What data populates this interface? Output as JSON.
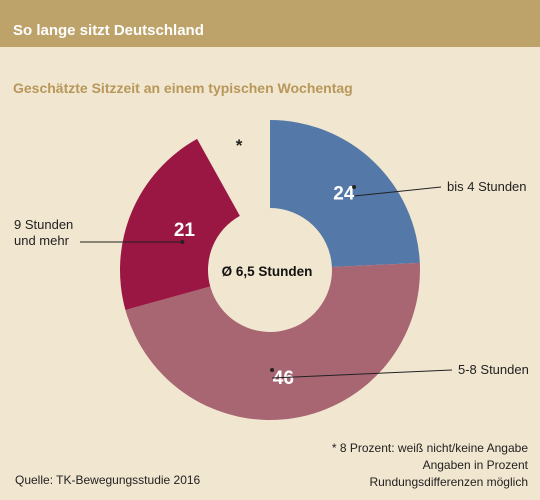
{
  "header": {
    "title": "So lange sitzt Deutschland"
  },
  "chart_data": {
    "type": "pie",
    "variant": "donut",
    "subtitle": "Geschätzte Sitzzeit an einem typischen Wochentag",
    "center_label": "Ø 6,5 Stunden",
    "unit": "Prozent",
    "slices": [
      {
        "label": "bis 4 Stunden",
        "value": 24,
        "color": "#5479a8"
      },
      {
        "label": "5-8 Stunden",
        "value": 46,
        "color": "#a86572"
      },
      {
        "label": "9 Stunden und mehr",
        "label_lines": [
          "9 Stunden",
          "und mehr"
        ],
        "value": 21,
        "color": "#9a1744"
      }
    ],
    "missing": {
      "value": 8,
      "marker": "*",
      "note": "* 8 Prozent: weiß nicht/keine Angabe"
    },
    "start_angle_deg": 0,
    "direction": "clockwise"
  },
  "footer": {
    "source": "Quelle: TK-Bewegungsstudie 2016",
    "notes": [
      "Angaben in Prozent",
      "Rundungsdifferenzen möglich"
    ]
  }
}
